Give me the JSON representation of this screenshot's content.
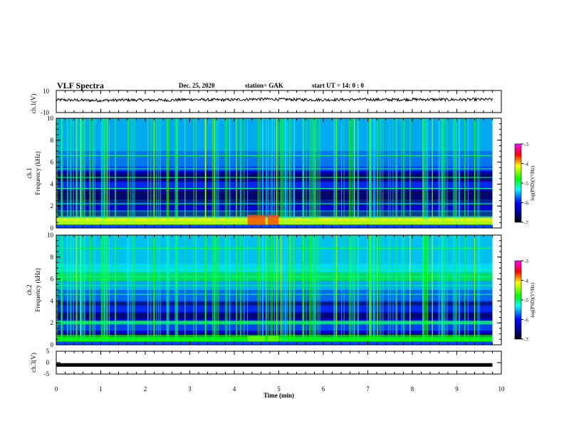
{
  "header": {
    "title": "VLF Spectra",
    "date": "Dec. 25, 2020",
    "station": "station= GAK",
    "start": "start  UT =   14: 0   : 0"
  },
  "chart_data": [
    {
      "type": "line",
      "ylabel": "ch.1(V)",
      "ylim": [
        -10,
        10
      ],
      "yticks": [
        "10",
        "-10"
      ],
      "x": [
        0,
        0.5,
        1,
        1.5,
        2,
        2.5,
        3,
        3.5,
        4,
        4.5,
        5,
        5.5,
        6,
        6.5,
        7,
        7.5,
        8,
        8.5,
        9,
        9.5,
        9.8
      ],
      "values": [
        1.5,
        1.2,
        1.0,
        1.3,
        1.4,
        1.2,
        1.8,
        1.5,
        1.6,
        2.2,
        2.0,
        1.7,
        1.6,
        1.7,
        1.8,
        1.6,
        1.9,
        1.8,
        1.7,
        1.8,
        1.9
      ]
    },
    {
      "type": "heatmap",
      "ylabel_1": "ch.1",
      "ylabel_2": "Frequency (kHz)",
      "ylim": [
        0,
        10
      ],
      "yticks": [
        "0",
        "2",
        "4",
        "6",
        "8",
        "10"
      ],
      "colorbar_label": "log(PSD)(V²/Hz)",
      "colorbar_ticks": [
        "-3",
        "-4",
        "-5",
        "-6",
        "-7"
      ],
      "crange": [
        -7,
        -3
      ]
    },
    {
      "type": "heatmap",
      "ylabel_1": "ch.2",
      "ylabel_2": "Frequency (kHz)",
      "ylim": [
        0,
        10
      ],
      "yticks": [
        "0",
        "2",
        "4",
        "6",
        "8",
        "10"
      ],
      "colorbar_label": "log(PSD)(V²/Hz)",
      "colorbar_ticks": [
        "-3",
        "-4",
        "-5",
        "-6",
        "-7"
      ],
      "crange": [
        -7,
        -3
      ]
    },
    {
      "type": "line",
      "ylabel": "ch.3(V)",
      "ylim": [
        -5,
        5
      ],
      "yticks": [
        "5",
        "0",
        "-5"
      ],
      "x": [
        0,
        9.8
      ],
      "values": [
        -1,
        -1
      ]
    }
  ],
  "xaxis": {
    "label": "Time (min)",
    "range": [
      0,
      10
    ],
    "ticks": [
      "0",
      "1",
      "2",
      "3",
      "4",
      "5",
      "6",
      "7",
      "8",
      "9",
      "10"
    ]
  }
}
